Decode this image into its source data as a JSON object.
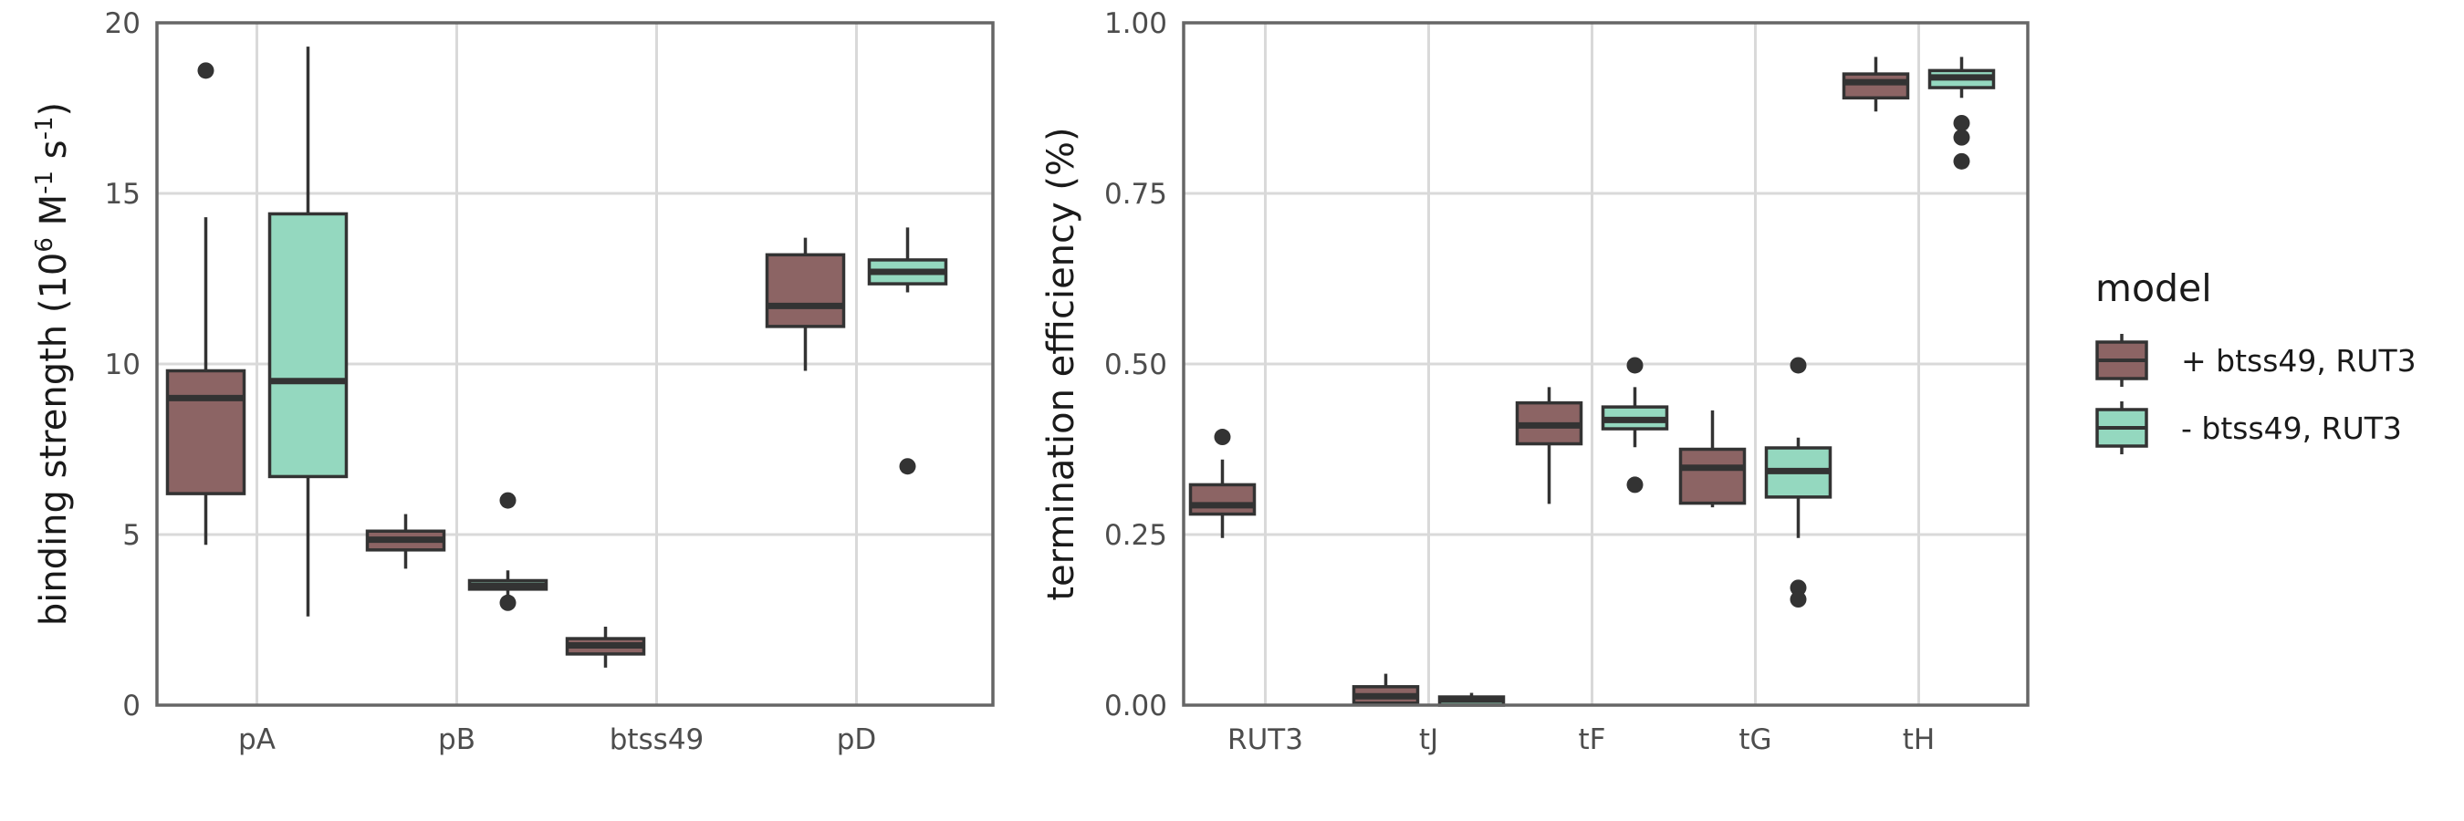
{
  "legend": {
    "title": "model",
    "entries": [
      {
        "key": "plus",
        "label": "+ btss49, RUT3",
        "color": "#8c6464"
      },
      {
        "key": "minus",
        "label": "- btss49, RUT3",
        "color": "#94d8bf"
      }
    ]
  },
  "colors": {
    "box_edge": "#333333",
    "grid": "#d9d9d9",
    "frame": "#666666"
  },
  "chart_data": [
    {
      "type": "boxplot",
      "title": "",
      "xlabel": "",
      "ylabel_parts": [
        "binding strength (10",
        "6",
        " M",
        "-1",
        " s",
        "-1",
        ")"
      ],
      "ylim": [
        0,
        20
      ],
      "yticks": [
        "0",
        "5",
        "10",
        "15",
        "20"
      ],
      "categories": [
        "pA",
        "pB",
        "btss49",
        "pD"
      ],
      "series": [
        {
          "name": "+ btss49, RUT3",
          "boxes": [
            {
              "category": "pA",
              "whisker_low": 4.7,
              "q1": 6.2,
              "median": 9.0,
              "q3": 9.8,
              "whisker_high": 14.3,
              "outliers": [
                18.6
              ]
            },
            {
              "category": "pB",
              "whisker_low": 4.0,
              "q1": 4.55,
              "median": 4.85,
              "q3": 5.1,
              "whisker_high": 5.6,
              "outliers": []
            },
            {
              "category": "btss49",
              "whisker_low": 1.1,
              "q1": 1.5,
              "median": 1.75,
              "q3": 1.95,
              "whisker_high": 2.3,
              "outliers": []
            },
            {
              "category": "pD",
              "whisker_low": 9.8,
              "q1": 11.1,
              "median": 11.7,
              "q3": 13.2,
              "whisker_high": 13.7,
              "outliers": []
            }
          ]
        },
        {
          "name": "- btss49, RUT3",
          "boxes": [
            {
              "category": "pA",
              "whisker_low": 2.6,
              "q1": 6.7,
              "median": 9.5,
              "q3": 14.4,
              "whisker_high": 19.3,
              "outliers": []
            },
            {
              "category": "pB",
              "whisker_low": 3.2,
              "q1": 3.4,
              "median": 3.5,
              "q3": 3.65,
              "whisker_high": 3.95,
              "outliers": [
                6.0,
                3.0
              ]
            },
            {
              "category": "pD",
              "whisker_low": 12.1,
              "q1": 12.35,
              "median": 12.7,
              "q3": 13.05,
              "whisker_high": 14.0,
              "outliers": [
                7.0
              ]
            }
          ]
        }
      ]
    },
    {
      "type": "boxplot",
      "title": "",
      "xlabel": "",
      "ylabel": "termination efficiency (%)",
      "ylim": [
        0,
        1
      ],
      "yticks": [
        "0.00",
        "0.25",
        "0.50",
        "0.75",
        "1.00"
      ],
      "categories": [
        "RUT3",
        "tJ",
        "tF",
        "tG",
        "tH"
      ],
      "series": [
        {
          "name": "+ btss49, RUT3",
          "boxes": [
            {
              "category": "RUT3",
              "whisker_low": 0.245,
              "q1": 0.28,
              "median": 0.293,
              "q3": 0.323,
              "whisker_high": 0.36,
              "outliers": [
                0.393
              ]
            },
            {
              "category": "tJ",
              "whisker_low": 0.0,
              "q1": 0.003,
              "median": 0.013,
              "q3": 0.027,
              "whisker_high": 0.046,
              "outliers": []
            },
            {
              "category": "tF",
              "whisker_low": 0.295,
              "q1": 0.383,
              "median": 0.41,
              "q3": 0.443,
              "whisker_high": 0.466,
              "outliers": []
            },
            {
              "category": "tG",
              "whisker_low": 0.29,
              "q1": 0.296,
              "median": 0.348,
              "q3": 0.375,
              "whisker_high": 0.432,
              "outliers": []
            },
            {
              "category": "tH",
              "whisker_low": 0.87,
              "q1": 0.89,
              "median": 0.913,
              "q3": 0.925,
              "whisker_high": 0.95,
              "outliers": []
            }
          ]
        },
        {
          "name": "- btss49, RUT3",
          "boxes": [
            {
              "category": "tJ",
              "whisker_low": 0.0,
              "q1": 0.0,
              "median": 0.008,
              "q3": 0.012,
              "whisker_high": 0.018,
              "outliers": []
            },
            {
              "category": "tF",
              "whisker_low": 0.378,
              "q1": 0.405,
              "median": 0.418,
              "q3": 0.437,
              "whisker_high": 0.466,
              "outliers": [
                0.498,
                0.323
              ]
            },
            {
              "category": "tG",
              "whisker_low": 0.245,
              "q1": 0.305,
              "median": 0.343,
              "q3": 0.377,
              "whisker_high": 0.392,
              "outliers": [
                0.498,
                0.172,
                0.155
              ]
            },
            {
              "category": "tH",
              "whisker_low": 0.89,
              "q1": 0.905,
              "median": 0.92,
              "q3": 0.93,
              "whisker_high": 0.95,
              "outliers": [
                0.853,
                0.832,
                0.797
              ]
            }
          ]
        }
      ]
    }
  ]
}
